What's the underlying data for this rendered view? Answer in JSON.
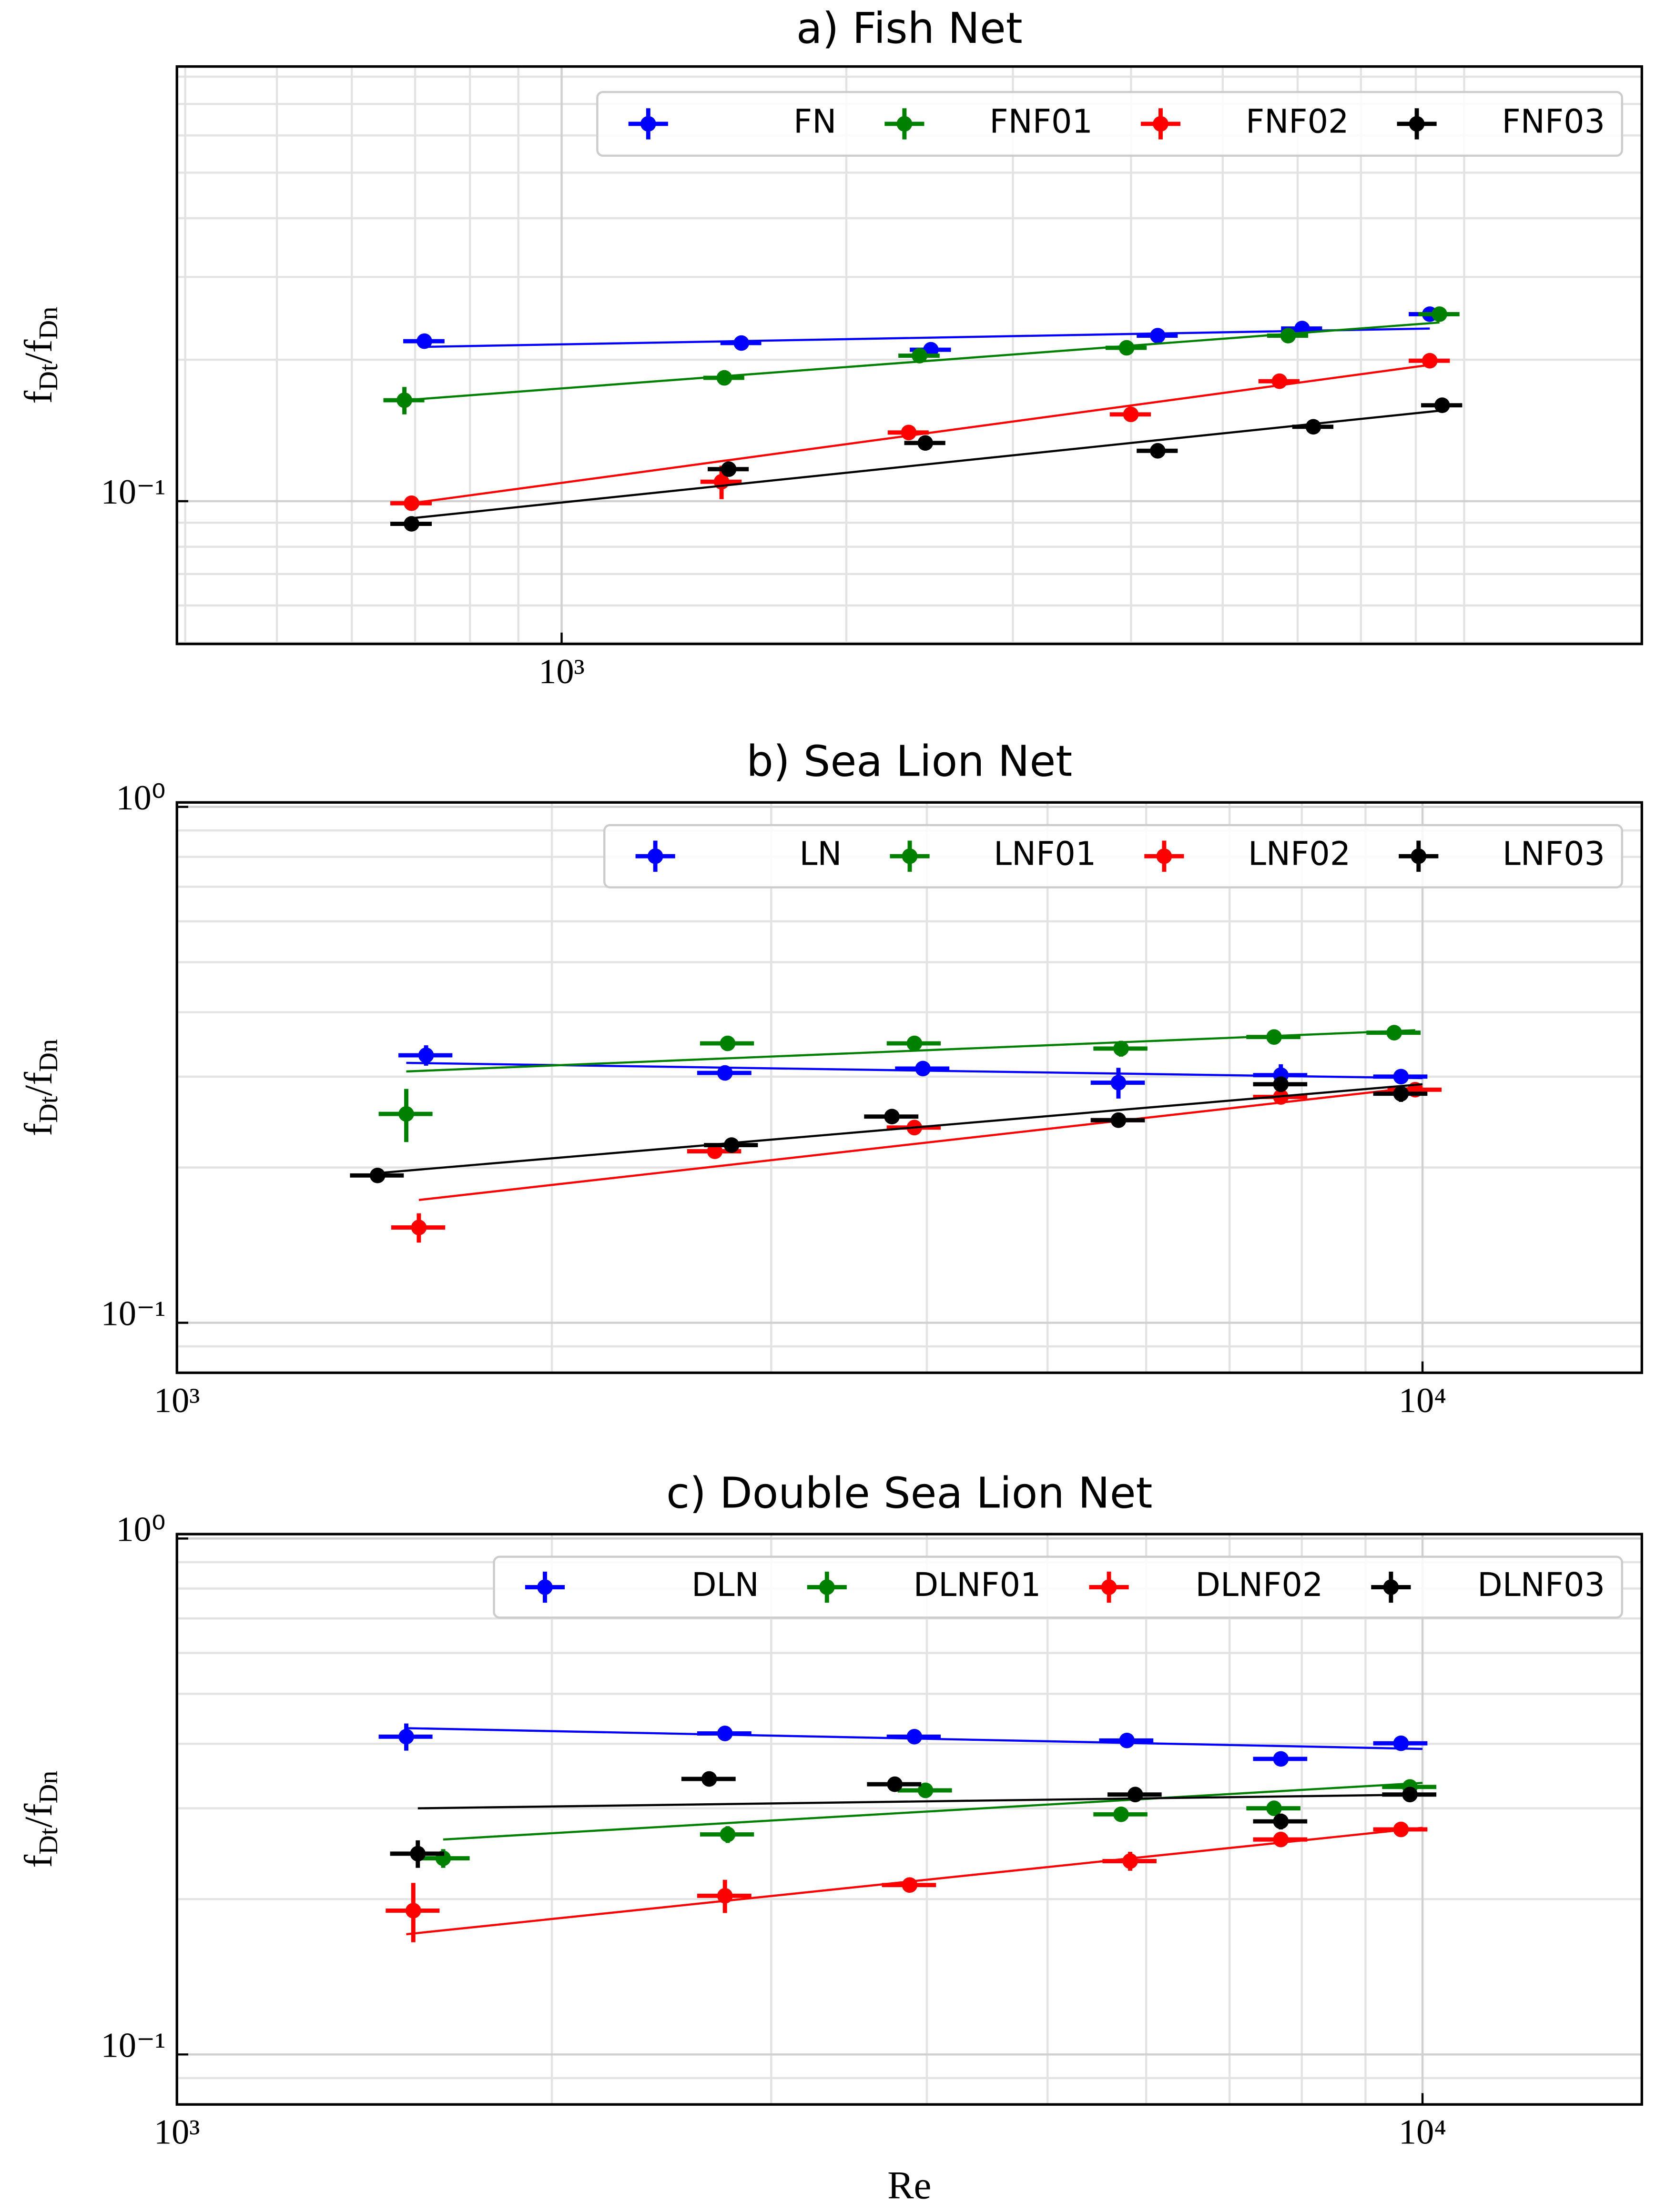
{
  "chart_data": [
    {
      "type": "scatter",
      "title": "a) Fish Net",
      "ylabel": "fDt/fDn",
      "log_x": true,
      "log_y": true,
      "grid": true,
      "minor_grid": true,
      "legend": "upper right",
      "xlim": [
        392,
        13870
      ],
      "ylim": [
        0.0497,
        0.841
      ],
      "xticks": [
        {
          "value": 1000,
          "label": "10³"
        }
      ],
      "yticks": [
        {
          "value": 0.1,
          "label": "10⁻¹"
        }
      ],
      "series": [
        {
          "name": "FN",
          "color": "#0000ff",
          "x": [
            716,
            1549,
            2457,
            4268,
            6066,
            8277
          ],
          "values": [
            0.219,
            0.217,
            0.21,
            0.225,
            0.233,
            0.25
          ],
          "xerr": [
            36,
            77,
            123,
            213,
            303,
            414
          ],
          "yerr": [
            0.006,
            0.004,
            0.004,
            0.004,
            0.004,
            0.006
          ],
          "fit": {
            "x": [
              716,
              8277
            ],
            "y": [
              0.213,
              0.233
            ]
          }
        },
        {
          "name": "FNF01",
          "color": "#008000",
          "x": [
            682,
            1486,
            2390,
            3957,
            5863,
            8474
          ],
          "values": [
            0.164,
            0.183,
            0.204,
            0.212,
            0.225,
            0.25
          ],
          "xerr": [
            34,
            74,
            120,
            198,
            293,
            424
          ],
          "yerr": [
            0.011,
            0.004,
            0.004,
            0.004,
            0.004,
            0.004
          ],
          "fit": {
            "x": [
              682,
              8474
            ],
            "y": [
              0.164,
              0.24
            ]
          }
        },
        {
          "name": "FNF02",
          "color": "#ff0000",
          "x": [
            694,
            1476,
            2328,
            3998,
            5741,
            8277
          ],
          "values": [
            0.099,
            0.11,
            0.14,
            0.153,
            0.18,
            0.199
          ],
          "xerr": [
            35,
            74,
            116,
            200,
            287,
            414
          ],
          "yerr": [
            0.003,
            0.009,
            0.004,
            0.003,
            0.003,
            0.004
          ],
          "fit": {
            "x": [
              694,
              8277
            ],
            "y": [
              0.099,
              0.195
            ]
          }
        },
        {
          "name": "FNF03",
          "color": "#000000",
          "x": [
            694,
            1502,
            2424,
            4268,
            6234,
            8530
          ],
          "values": [
            0.0895,
            0.117,
            0.133,
            0.128,
            0.144,
            0.16
          ],
          "xerr": [
            35,
            75,
            121,
            213,
            312,
            427
          ],
          "yerr": [
            0.002,
            0.003,
            0.003,
            0.003,
            0.003,
            0.003
          ],
          "fit": {
            "x": [
              694,
              8530
            ],
            "y": [
              0.092,
              0.156
            ]
          }
        }
      ]
    },
    {
      "type": "scatter",
      "title": "b) Sea Lion Net",
      "ylabel": "fDt/fDn",
      "log_x": true,
      "log_y": true,
      "grid": true,
      "minor_grid": true,
      "legend": "upper right",
      "xlim": [
        1000,
        15000
      ],
      "ylim": [
        0.08,
        1.02
      ],
      "xticks": [
        {
          "value": 1000,
          "label": "10³"
        },
        {
          "value": 10000,
          "label": "10⁴"
        }
      ],
      "yticks": [
        {
          "value": 0.1,
          "label": "10⁻¹"
        },
        {
          "value": 1,
          "label": "10⁰"
        }
      ],
      "series": [
        {
          "name": "LN",
          "color": "#0000ff",
          "x": [
            1585,
            2754,
            3971,
            5700,
            7696,
            9610
          ],
          "values": [
            0.33,
            0.305,
            0.311,
            0.292,
            0.302,
            0.3
          ],
          "xerr": [
            79,
            138,
            199,
            285,
            385,
            481
          ],
          "yerr": [
            0.015,
            0.01,
            0.008,
            0.02,
            0.015,
            0.008
          ],
          "fit": {
            "x": [
              1528,
              10000
            ],
            "y": [
              0.319,
              0.298
            ]
          }
        },
        {
          "name": "LNF01",
          "color": "#008000",
          "x": [
            1528,
            2768,
            3909,
            5728,
            7600,
            9490
          ],
          "values": [
            0.254,
            0.348,
            0.348,
            0.34,
            0.358,
            0.365
          ],
          "xerr": [
            76,
            138,
            195,
            286,
            380,
            475
          ],
          "yerr": [
            0.03,
            0.01,
            0.008,
            0.012,
            0.008,
            0.01
          ],
          "fit": {
            "x": [
              1528,
              9866
            ],
            "y": [
              0.307,
              0.369
            ]
          }
        },
        {
          "name": "LNF02",
          "color": "#ff0000",
          "x": [
            1564,
            2703,
            3909,
            5700,
            7696,
            9866
          ],
          "values": [
            0.153,
            0.215,
            0.239,
            0.247,
            0.274,
            0.283
          ],
          "xerr": [
            78,
            135,
            195,
            285,
            385,
            493
          ],
          "yerr": [
            0.01,
            0.006,
            0.008,
            0.005,
            0.006,
            0.005
          ],
          "fit": {
            "x": [
              1564,
              10000
            ],
            "y": [
              0.173,
              0.287
            ]
          }
        },
        {
          "name": "LNF03",
          "color": "#000000",
          "x": [
            1449,
            2788,
            3750,
            5700,
            7696,
            9610
          ],
          "values": [
            0.193,
            0.221,
            0.251,
            0.247,
            0.29,
            0.278
          ],
          "xerr": [
            72,
            139,
            188,
            285,
            385,
            481
          ],
          "yerr": [
            0.003,
            0.004,
            0.004,
            0.004,
            0.01,
            0.01
          ],
          "fit": {
            "x": [
              1449,
              10000
            ],
            "y": [
              0.195,
              0.29
            ]
          }
        }
      ]
    },
    {
      "type": "scatter",
      "title": "c) Double Sea Lion Net",
      "xlabel": "Re",
      "ylabel": "fDt/fDn",
      "log_x": true,
      "log_y": true,
      "grid": true,
      "minor_grid": true,
      "legend": "upper right",
      "xlim": [
        1000,
        15000
      ],
      "ylim": [
        0.08,
        1.02
      ],
      "xticks": [
        {
          "value": 1000,
          "label": "10³"
        },
        {
          "value": 10000,
          "label": "10⁴"
        }
      ],
      "yticks": [
        {
          "value": 0.1,
          "label": "10⁻¹"
        },
        {
          "value": 1,
          "label": "10⁰"
        }
      ],
      "series": [
        {
          "name": "DLN",
          "color": "#0000ff",
          "x": [
            1528,
            2754,
            3909,
            5790,
            7696,
            9610
          ],
          "values": [
            0.413,
            0.419,
            0.413,
            0.406,
            0.374,
            0.401
          ],
          "xerr": [
            76,
            138,
            195,
            290,
            385,
            481
          ],
          "yerr": [
            0.025,
            0.008,
            0.008,
            0.008,
            0.008,
            0.008
          ],
          "fit": {
            "x": [
              1528,
              10000
            ],
            "y": [
              0.429,
              0.391
            ]
          }
        },
        {
          "name": "DLNF01",
          "color": "#008000",
          "x": [
            1636,
            2768,
            3990,
            5728,
            7600,
            9770
          ],
          "values": [
            0.24,
            0.267,
            0.325,
            0.292,
            0.3,
            0.33
          ],
          "xerr": [
            82,
            138,
            200,
            286,
            380,
            489
          ],
          "yerr": [
            0.01,
            0.01,
            0.008,
            0.008,
            0.008,
            0.008
          ],
          "fit": {
            "x": [
              1636,
              10000
            ],
            "y": [
              0.261,
              0.336
            ]
          }
        },
        {
          "name": "DLNF02",
          "color": "#ff0000",
          "x": [
            1548,
            2754,
            3875,
            5825,
            7696,
            9610
          ],
          "values": [
            0.19,
            0.203,
            0.213,
            0.237,
            0.261,
            0.273
          ],
          "xerr": [
            77,
            138,
            194,
            291,
            385,
            481
          ],
          "yerr": [
            0.025,
            0.015,
            0.005,
            0.01,
            0.005,
            0.005
          ],
          "fit": {
            "x": [
              1528,
              10000
            ],
            "y": [
              0.171,
              0.275
            ]
          }
        },
        {
          "name": "DLNF03",
          "color": "#000000",
          "x": [
            1561,
            2675,
            3770,
            5880,
            7696,
            9770
          ],
          "values": [
            0.245,
            0.342,
            0.334,
            0.319,
            0.283,
            0.319
          ],
          "xerr": [
            78,
            134,
            189,
            294,
            385,
            489
          ],
          "yerr": [
            0.015,
            0.01,
            0.008,
            0.008,
            0.01,
            0.008
          ],
          "fit": {
            "x": [
              1561,
              10000
            ],
            "y": [
              0.3,
              0.319
            ]
          }
        }
      ]
    }
  ]
}
